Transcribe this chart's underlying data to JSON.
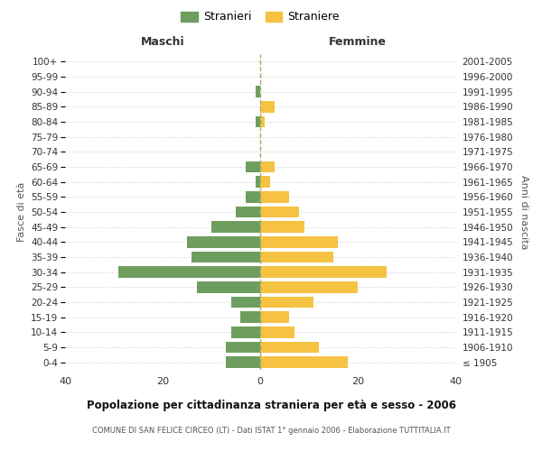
{
  "age_groups": [
    "100+",
    "95-99",
    "90-94",
    "85-89",
    "80-84",
    "75-79",
    "70-74",
    "65-69",
    "60-64",
    "55-59",
    "50-54",
    "45-49",
    "40-44",
    "35-39",
    "30-34",
    "25-29",
    "20-24",
    "15-19",
    "10-14",
    "5-9",
    "0-4"
  ],
  "birth_years": [
    "≤ 1905",
    "1906-1910",
    "1911-1915",
    "1916-1920",
    "1921-1925",
    "1926-1930",
    "1931-1935",
    "1936-1940",
    "1941-1945",
    "1946-1950",
    "1951-1955",
    "1956-1960",
    "1961-1965",
    "1966-1970",
    "1971-1975",
    "1976-1980",
    "1981-1985",
    "1986-1990",
    "1991-1995",
    "1996-2000",
    "2001-2005"
  ],
  "maschi": [
    0,
    0,
    1,
    0,
    1,
    0,
    0,
    3,
    1,
    3,
    5,
    10,
    15,
    14,
    29,
    13,
    6,
    4,
    6,
    7,
    7
  ],
  "femmine": [
    0,
    0,
    0,
    3,
    1,
    0,
    0,
    3,
    2,
    6,
    8,
    9,
    16,
    15,
    26,
    20,
    11,
    6,
    7,
    12,
    18
  ],
  "color_maschi": "#6e9e5f",
  "color_femmine": "#f5c242",
  "title": "Popolazione per cittadinanza straniera per età e sesso - 2006",
  "subtitle": "COMUNE DI SAN FELICE CIRCEO (LT) - Dati ISTAT 1° gennaio 2006 - Elaborazione TUTTITALIA.IT",
  "xlabel_left": "Maschi",
  "xlabel_right": "Femmine",
  "ylabel_left": "Fasce di età",
  "ylabel_right": "Anni di nascita",
  "legend_maschi": "Stranieri",
  "legend_femmine": "Straniere",
  "xlim": 40,
  "background_color": "#ffffff",
  "grid_color": "#cccccc"
}
